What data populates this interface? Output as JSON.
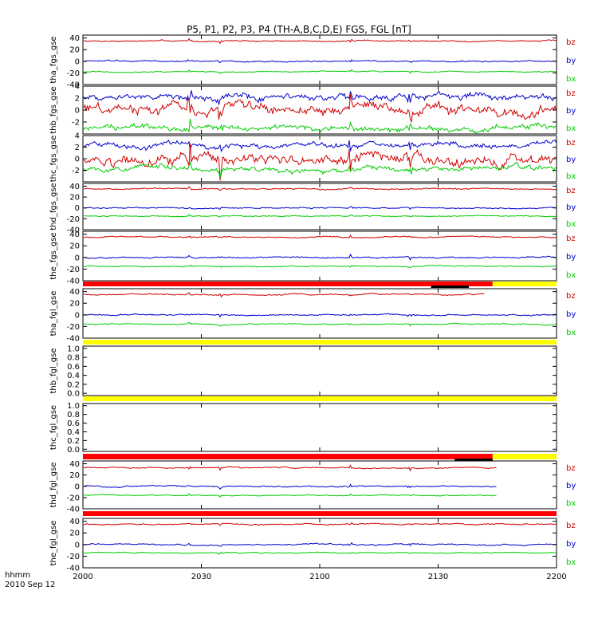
{
  "chart_data": {
    "type": "line",
    "title": "P5, P1, P2, P3, P4 (TH-A,B,C,D,E) FGS, FGL [nT]",
    "x_ticks": [
      "2000",
      "2030",
      "2100",
      "2130",
      "2200"
    ],
    "x_tick_hours": [
      20.0,
      20.5,
      21.0,
      21.5,
      22.0
    ],
    "x_range_hours": [
      20.0,
      22.0
    ],
    "footer": {
      "time_label": "hhmm",
      "date_label": "2010 Sep 12"
    },
    "legend_colors": {
      "bz": "#d00000",
      "by": "#0000cc",
      "bx": "#00cc00"
    },
    "panels": [
      {
        "id": "tha_fgs",
        "ylabel": "tha_fgs_gse",
        "ylim": [
          -40,
          45
        ],
        "yticks": [
          -40,
          -20,
          0,
          20,
          40
        ],
        "ytick_labels": [
          "-40",
          "-20",
          "0",
          "20",
          "40"
        ],
        "legend": [
          "bz",
          "by",
          "bx"
        ],
        "series": [
          {
            "name": "bz",
            "color": "#d00000",
            "base": 35,
            "noise": 1.2,
            "end": 22.0
          },
          {
            "name": "by",
            "color": "#0000cc",
            "base": 0,
            "noise": 1.3,
            "end": 22.0
          },
          {
            "name": "bx",
            "color": "#00cc00",
            "base": -18,
            "noise": 1.0,
            "end": 22.0
          }
        ]
      },
      {
        "id": "thb_fgs",
        "ylabel": "thb_fgs_gse",
        "ylim": [
          -4,
          4
        ],
        "yticks": [
          -2,
          0,
          2,
          4
        ],
        "ytick_labels": [
          "-2",
          "0",
          "2",
          "4"
        ],
        "legend": [
          "bz",
          "by",
          "bx"
        ],
        "series": [
          {
            "name": "by",
            "color": "#0000cc",
            "base": 2.2,
            "noise": 0.6,
            "end": 22.0
          },
          {
            "name": "bz",
            "color": "#d00000",
            "base": 0.2,
            "noise": 0.9,
            "end": 22.0
          },
          {
            "name": "bx",
            "color": "#00cc00",
            "base": -3.0,
            "noise": 0.5,
            "end": 22.0
          }
        ]
      },
      {
        "id": "thc_fgs",
        "ylabel": "thc_fgs_gse",
        "ylim": [
          -4,
          4
        ],
        "yticks": [
          -2,
          0,
          2,
          4
        ],
        "ytick_labels": [
          "-2",
          "0",
          "2",
          "4"
        ],
        "legend": [
          "bz",
          "by",
          "bx"
        ],
        "series": [
          {
            "name": "by",
            "color": "#0000cc",
            "base": 2.3,
            "noise": 0.5,
            "end": 22.0
          },
          {
            "name": "bz",
            "color": "#d00000",
            "base": -0.2,
            "noise": 1.0,
            "end": 22.0
          },
          {
            "name": "bx",
            "color": "#00cc00",
            "base": -1.8,
            "noise": 0.5,
            "end": 22.0
          }
        ]
      },
      {
        "id": "thd_fgs",
        "ylabel": "thd_fgs_gse",
        "ylim": [
          -40,
          45
        ],
        "yticks": [
          -40,
          -20,
          0,
          20,
          40
        ],
        "ytick_labels": [
          "-40",
          "-20",
          "0",
          "20",
          "40"
        ],
        "legend": [
          "bz",
          "by",
          "bx"
        ],
        "series": [
          {
            "name": "bz",
            "color": "#d00000",
            "base": 35,
            "noise": 1.2,
            "end": 22.0
          },
          {
            "name": "by",
            "color": "#0000cc",
            "base": 0,
            "noise": 1.3,
            "end": 22.0
          },
          {
            "name": "bx",
            "color": "#00cc00",
            "base": -15,
            "noise": 1.0,
            "end": 22.0
          }
        ]
      },
      {
        "id": "the_fgs",
        "ylabel": "the_fgs_gse",
        "ylim": [
          -40,
          45
        ],
        "yticks": [
          -40,
          -20,
          0,
          20,
          40
        ],
        "ytick_labels": [
          "-40",
          "-20",
          "0",
          "20",
          "40"
        ],
        "legend": [
          "bz",
          "by",
          "bx"
        ],
        "series": [
          {
            "name": "bz",
            "color": "#d00000",
            "base": 35,
            "noise": 1.2,
            "end": 22.0
          },
          {
            "name": "by",
            "color": "#0000cc",
            "base": 0,
            "noise": 1.3,
            "end": 22.0
          },
          {
            "name": "bx",
            "color": "#00cc00",
            "base": -15,
            "noise": 1.0,
            "end": 22.0
          }
        ]
      },
      {
        "id": "tha_fgl",
        "ylabel": "tha_fgl_gse",
        "ylim": [
          -40,
          45
        ],
        "yticks": [
          -40,
          -20,
          0,
          20,
          40
        ],
        "ytick_labels": [
          "-40",
          "-20",
          "0",
          "20",
          "40"
        ],
        "legend": [
          "bz",
          "by",
          "bx"
        ],
        "series": [
          {
            "name": "bz",
            "color": "#d00000",
            "base": 35,
            "noise": 1.2,
            "end": 21.7
          },
          {
            "name": "by",
            "color": "#0000cc",
            "base": 0,
            "noise": 1.3,
            "end": 22.0
          },
          {
            "name": "bx",
            "color": "#00cc00",
            "base": -16,
            "noise": 1.0,
            "end": 22.0
          }
        ]
      },
      {
        "id": "thb_fgl",
        "ylabel": "thb_fgl_gse",
        "ylim": [
          -0.05,
          1.05
        ],
        "yticks": [
          0.0,
          0.2,
          0.4,
          0.6,
          0.8,
          1.0
        ],
        "ytick_labels": [
          "0.0",
          "0.2",
          "0.4",
          "0.6",
          "0.8",
          "1.0"
        ],
        "legend": [],
        "series": []
      },
      {
        "id": "thc_fgl",
        "ylabel": "thc_fgl_gse",
        "ylim": [
          -0.05,
          1.05
        ],
        "yticks": [
          0.0,
          0.2,
          0.4,
          0.6,
          0.8,
          1.0
        ],
        "ytick_labels": [
          "0.0",
          "0.2",
          "0.4",
          "0.6",
          "0.8",
          "1.0"
        ],
        "legend": [],
        "series": []
      },
      {
        "id": "thd_fgl",
        "ylabel": "thd_fgl_gse",
        "ylim": [
          -40,
          45
        ],
        "yticks": [
          -40,
          -20,
          0,
          20,
          40
        ],
        "ytick_labels": [
          "-40",
          "-20",
          "0",
          "20",
          "40"
        ],
        "legend": [
          "bz",
          "by",
          "bx"
        ],
        "series": [
          {
            "name": "bz",
            "color": "#d00000",
            "base": 33,
            "noise": 1.2,
            "end": 21.75
          },
          {
            "name": "by",
            "color": "#0000cc",
            "base": 0,
            "noise": 1.3,
            "end": 21.75
          },
          {
            "name": "bx",
            "color": "#00cc00",
            "base": -16,
            "noise": 1.0,
            "end": 21.75
          }
        ]
      },
      {
        "id": "the_fgl",
        "ylabel": "the_fgl_gse",
        "ylim": [
          -40,
          45
        ],
        "yticks": [
          -40,
          -20,
          0,
          20,
          40
        ],
        "ytick_labels": [
          "-40",
          "-20",
          "0",
          "20",
          "40"
        ],
        "legend": [
          "bz",
          "by",
          "bx"
        ],
        "series": [
          {
            "name": "bz",
            "color": "#d00000",
            "base": 35,
            "noise": 1.2,
            "end": 22.0
          },
          {
            "name": "by",
            "color": "#0000cc",
            "base": 0,
            "noise": 1.3,
            "end": 22.0
          },
          {
            "name": "bx",
            "color": "#00cc00",
            "base": -14,
            "noise": 1.0,
            "end": 22.0
          }
        ]
      }
    ],
    "bars": [
      {
        "after_panel": 4,
        "segments": [
          {
            "color": "#ff0000",
            "from": 20.0,
            "to": 21.73
          },
          {
            "color": "#ffff00",
            "from": 21.73,
            "to": 22.0
          }
        ],
        "flag": {
          "color": "#000000",
          "from": 21.47,
          "to": 21.63
        }
      },
      {
        "after_panel": 5,
        "segments": [
          {
            "color": "#ffff00",
            "from": 20.0,
            "to": 22.0
          }
        ]
      },
      {
        "after_panel": 6,
        "segments": [
          {
            "color": "#ffff00",
            "from": 20.0,
            "to": 22.0
          }
        ]
      },
      {
        "after_panel": 7,
        "segments": [
          {
            "color": "#ff0000",
            "from": 20.0,
            "to": 21.73
          },
          {
            "color": "#ffff00",
            "from": 21.73,
            "to": 22.0
          }
        ],
        "flag": {
          "color": "#000000",
          "from": 21.57,
          "to": 21.73
        }
      },
      {
        "after_panel": 8,
        "segments": [
          {
            "color": "#ff0000",
            "from": 20.0,
            "to": 22.0
          }
        ]
      }
    ]
  }
}
